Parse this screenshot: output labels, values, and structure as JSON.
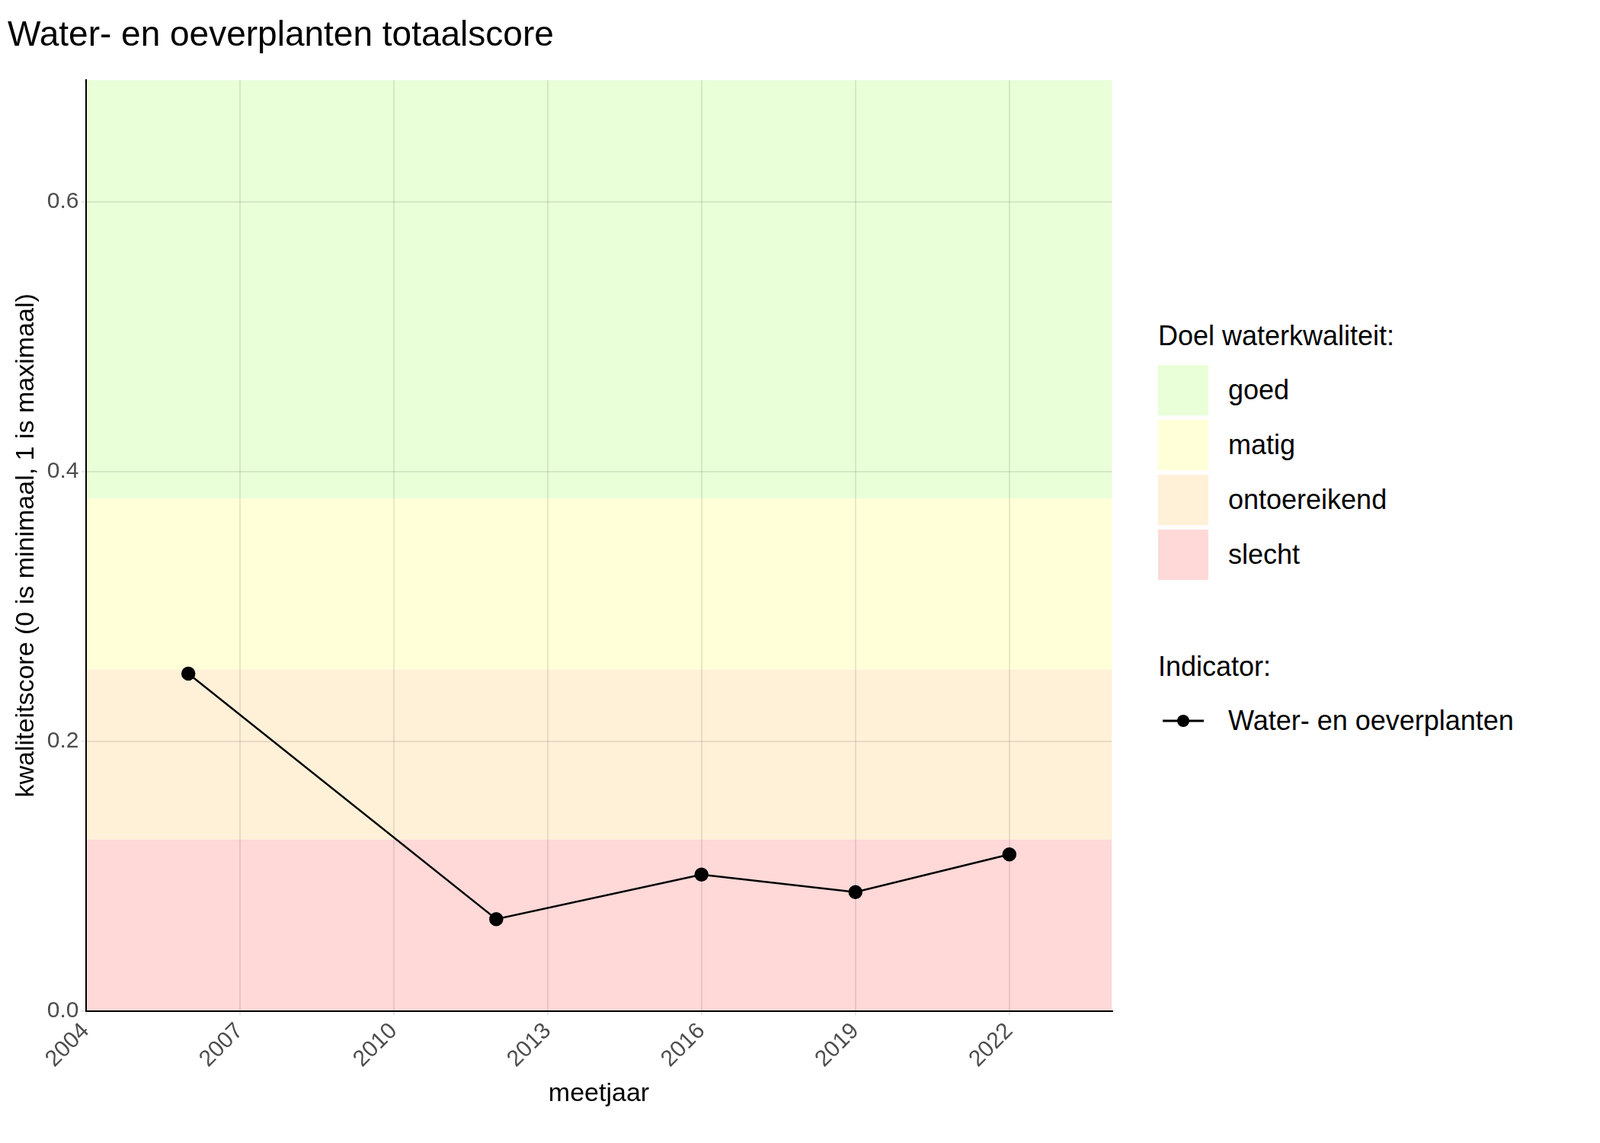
{
  "chart_data": {
    "type": "line",
    "title": "Water- en oeverplanten totaalscore",
    "x_label": "meetjaar",
    "y_label": "kwaliteitscore (0 is minimaal, 1 is maximaal)",
    "x": [
      2006,
      2012,
      2016,
      2019,
      2022
    ],
    "series": [
      {
        "name": "Water- en oeverplanten",
        "color": "#000000",
        "marker": "circle",
        "values": [
          0.25,
          0.068,
          0.101,
          0.088,
          0.116
        ]
      }
    ],
    "xlim": [
      2004,
      2024
    ],
    "xticks": [
      2004,
      2007,
      2010,
      2013,
      2016,
      2019,
      2022
    ],
    "ylim": [
      0,
      0.69
    ],
    "yticks": [
      {
        "value": 0,
        "label": "0.0"
      },
      0.2,
      0.4,
      0.6
    ],
    "grid": true,
    "legend": "right",
    "bands_title": "Doel waterkwaliteit:",
    "bands": [
      {
        "name": "goed",
        "from": 0.38,
        "to": 1,
        "color": "#e8ffd8"
      },
      {
        "name": "matig",
        "from": 0.253,
        "to": 0.38,
        "color": "#ffffd8"
      },
      {
        "name": "ontoereikend",
        "from": 0.127,
        "to": 0.253,
        "color": "#fff0d8"
      },
      {
        "name": "slecht",
        "from": 0,
        "to": 0.127,
        "color": "#ffd8d8"
      }
    ],
    "legend_title": "Indicator:"
  }
}
